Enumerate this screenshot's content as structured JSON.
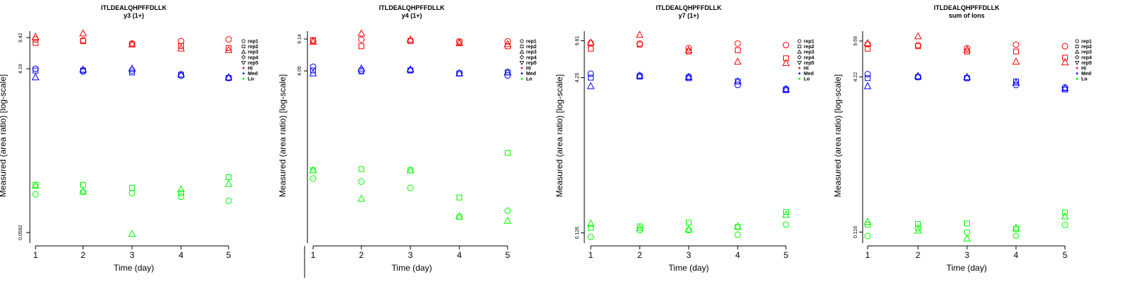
{
  "colors": {
    "Hi": "#ff0000",
    "Med": "#0000ff",
    "Lo": "#00ff00"
  },
  "legend": [
    "rep1",
    "rep2",
    "rep3",
    "rep4",
    "rep5",
    "Hi",
    "Med",
    "Lo"
  ],
  "chart_data": [
    {
      "type": "scatter",
      "title": "ITLDEALQHPFFDLLK",
      "subtitle": "y3 (1+)",
      "xlabel": "Time (day)",
      "ylabel": "Measured (area ratio) [log-scale]",
      "log_y": true,
      "x_ticks": [
        1,
        2,
        3,
        4,
        5
      ],
      "y_ticks": [
        "0.0592",
        "4.19",
        "9.42"
      ],
      "ylim": [
        0.045,
        12
      ],
      "series": [
        {
          "group": "Hi",
          "rep": "rep1",
          "x": [
            1,
            2,
            3,
            4,
            5
          ],
          "y": [
            9.0,
            8.8,
            8.1,
            8.6,
            9.0
          ]
        },
        {
          "group": "Hi",
          "rep": "rep2",
          "x": [
            1,
            2,
            3,
            4,
            5
          ],
          "y": [
            8.2,
            8.6,
            7.9,
            7.6,
            7.2
          ]
        },
        {
          "group": "Hi",
          "rep": "rep3",
          "x": [
            1,
            2,
            3,
            4,
            5
          ],
          "y": [
            9.6,
            10.5,
            7.9,
            7.1,
            6.8
          ]
        },
        {
          "group": "Med",
          "rep": "rep1",
          "x": [
            1,
            2,
            3,
            4,
            5
          ],
          "y": [
            4.2,
            3.9,
            4.0,
            3.5,
            3.3
          ]
        },
        {
          "group": "Med",
          "rep": "rep2",
          "x": [
            1,
            2,
            3,
            4,
            5
          ],
          "y": [
            4.0,
            4.0,
            3.8,
            3.6,
            3.3
          ]
        },
        {
          "group": "Med",
          "rep": "rep3",
          "x": [
            1,
            2,
            3,
            4,
            5
          ],
          "y": [
            3.35,
            4.1,
            4.2,
            3.6,
            3.35
          ]
        },
        {
          "group": "Lo",
          "rep": "rep1",
          "x": [
            1,
            2,
            3,
            4,
            5
          ],
          "y": [
            0.16,
            0.17,
            0.165,
            0.15,
            0.135
          ]
        },
        {
          "group": "Lo",
          "rep": "rep2",
          "x": [
            1,
            2,
            3,
            4,
            5
          ],
          "y": [
            0.205,
            0.205,
            0.19,
            0.165,
            0.25
          ]
        },
        {
          "group": "Lo",
          "rep": "rep3",
          "x": [
            1,
            2,
            3,
            4,
            5
          ],
          "y": [
            0.2,
            0.172,
            0.057,
            0.182,
            0.21
          ]
        }
      ]
    },
    {
      "type": "scatter",
      "title": "ITLDEALQHPFFDLLK",
      "subtitle": "y4 (1+)",
      "xlabel": "Time (day)",
      "ylabel": "Measured (area ratio) [log-scale]",
      "log_y": true,
      "x_ticks": [
        1,
        2,
        3,
        4,
        5
      ],
      "y_ticks": [
        "4.05",
        "9.14"
      ],
      "ylim": [
        0.05,
        12
      ],
      "series": [
        {
          "group": "Hi",
          "rep": "rep1",
          "x": [
            1,
            2,
            3,
            4,
            5
          ],
          "y": [
            8.7,
            9.0,
            8.7,
            8.6,
            8.6
          ]
        },
        {
          "group": "Hi",
          "rep": "rep2",
          "x": [
            1,
            2,
            3,
            4,
            5
          ],
          "y": [
            8.9,
            7.6,
            8.7,
            8.4,
            7.6
          ]
        },
        {
          "group": "Hi",
          "rep": "rep3",
          "x": [
            1,
            2,
            3,
            4,
            5
          ],
          "y": [
            8.5,
            10.5,
            9.0,
            8.2,
            8.0
          ]
        },
        {
          "group": "Med",
          "rep": "rep1",
          "x": [
            1,
            2,
            3,
            4,
            5
          ],
          "y": [
            4.5,
            4.1,
            4.1,
            3.8,
            3.6
          ]
        },
        {
          "group": "Med",
          "rep": "rep2",
          "x": [
            1,
            2,
            3,
            4,
            5
          ],
          "y": [
            4.1,
            4.0,
            4.1,
            3.8,
            3.9
          ]
        },
        {
          "group": "Med",
          "rep": "rep3",
          "x": [
            1,
            2,
            3,
            4,
            5
          ],
          "y": [
            3.8,
            4.3,
            4.2,
            3.8,
            3.9
          ]
        },
        {
          "group": "Lo",
          "rep": "rep1",
          "x": [
            1,
            2,
            3,
            4,
            5
          ],
          "y": [
            0.26,
            0.24,
            0.205,
            0.098,
            0.114
          ]
        },
        {
          "group": "Lo",
          "rep": "rep2",
          "x": [
            1,
            2,
            3,
            4,
            5
          ],
          "y": [
            0.32,
            0.33,
            0.32,
            0.16,
            0.5
          ]
        },
        {
          "group": "Lo",
          "rep": "rep3",
          "x": [
            1,
            2,
            3,
            4,
            5
          ],
          "y": [
            0.32,
            0.155,
            0.32,
            0.098,
            0.088
          ]
        }
      ]
    },
    {
      "type": "scatter",
      "title": "ITLDEALQHPFFDLLK",
      "subtitle": "y7 (1+)",
      "xlabel": "Time (day)",
      "ylabel": "Measured (area ratio) [log-scale]",
      "log_y": true,
      "x_ticks": [
        1,
        2,
        3,
        4,
        5
      ],
      "y_ticks": [
        "0.126",
        "4.25",
        "9.81"
      ],
      "ylim": [
        0.1,
        13
      ],
      "series": [
        {
          "group": "Hi",
          "rep": "rep1",
          "x": [
            1,
            2,
            3,
            4,
            5
          ],
          "y": [
            9.3,
            9.2,
            8.3,
            9.2,
            8.9
          ]
        },
        {
          "group": "Hi",
          "rep": "rep2",
          "x": [
            1,
            2,
            3,
            4,
            5
          ],
          "y": [
            8.2,
            9.0,
            7.7,
            7.9,
            6.6
          ]
        },
        {
          "group": "Hi",
          "rep": "rep3",
          "x": [
            1,
            2,
            3,
            4,
            5
          ],
          "y": [
            9.4,
            11.2,
            7.9,
            6.1,
            5.9
          ]
        },
        {
          "group": "Med",
          "rep": "rep1",
          "x": [
            1,
            2,
            3,
            4,
            5
          ],
          "y": [
            4.65,
            4.45,
            4.35,
            3.6,
            3.3
          ]
        },
        {
          "group": "Med",
          "rep": "rep2",
          "x": [
            1,
            2,
            3,
            4,
            5
          ],
          "y": [
            4.25,
            4.35,
            4.2,
            3.9,
            3.2
          ]
        },
        {
          "group": "Med",
          "rep": "rep3",
          "x": [
            1,
            2,
            3,
            4,
            5
          ],
          "y": [
            3.5,
            4.45,
            4.3,
            3.9,
            3.25
          ]
        },
        {
          "group": "Lo",
          "rep": "rep1",
          "x": [
            1,
            2,
            3,
            4,
            5
          ],
          "y": [
            0.115,
            0.134,
            0.134,
            0.121,
            0.152
          ]
        },
        {
          "group": "Lo",
          "rep": "rep2",
          "x": [
            1,
            2,
            3,
            4,
            5
          ],
          "y": [
            0.141,
            0.146,
            0.159,
            0.144,
            0.202
          ]
        },
        {
          "group": "Lo",
          "rep": "rep3",
          "x": [
            1,
            2,
            3,
            4,
            5
          ],
          "y": [
            0.155,
            0.14,
            0.136,
            0.146,
            0.19
          ]
        }
      ]
    },
    {
      "type": "scatter",
      "title": "ITLDEALQHPFFDLLK",
      "subtitle": "sum of Ions",
      "xlabel": "Time (day)",
      "ylabel": "Measured (area ratio) [log-scale]",
      "log_y": true,
      "x_ticks": [
        1,
        2,
        3,
        4,
        5
      ],
      "y_ticks": [
        "0.116",
        "4.22",
        "9.69"
      ],
      "ylim": [
        0.09,
        13
      ],
      "series": [
        {
          "group": "Hi",
          "rep": "rep1",
          "x": [
            1,
            2,
            3,
            4,
            5
          ],
          "y": [
            9.0,
            8.8,
            8.2,
            8.9,
            8.6
          ]
        },
        {
          "group": "Hi",
          "rep": "rep2",
          "x": [
            1,
            2,
            3,
            4,
            5
          ],
          "y": [
            8.1,
            8.6,
            7.6,
            7.6,
            6.6
          ]
        },
        {
          "group": "Hi",
          "rep": "rep3",
          "x": [
            1,
            2,
            3,
            4,
            5
          ],
          "y": [
            9.2,
            10.8,
            7.9,
            6.0,
            5.9
          ]
        },
        {
          "group": "Med",
          "rep": "rep1",
          "x": [
            1,
            2,
            3,
            4,
            5
          ],
          "y": [
            4.5,
            4.2,
            4.1,
            3.5,
            3.3
          ]
        },
        {
          "group": "Med",
          "rep": "rep2",
          "x": [
            1,
            2,
            3,
            4,
            5
          ],
          "y": [
            4.1,
            4.2,
            4.1,
            3.8,
            3.15
          ]
        },
        {
          "group": "Med",
          "rep": "rep3",
          "x": [
            1,
            2,
            3,
            4,
            5
          ],
          "y": [
            3.4,
            4.3,
            4.2,
            3.7,
            3.25
          ]
        },
        {
          "group": "Lo",
          "rep": "rep1",
          "x": [
            1,
            2,
            3,
            4,
            5
          ],
          "y": [
            0.106,
            0.127,
            0.115,
            0.107,
            0.137
          ]
        },
        {
          "group": "Lo",
          "rep": "rep2",
          "x": [
            1,
            2,
            3,
            4,
            5
          ],
          "y": [
            0.138,
            0.14,
            0.142,
            0.125,
            0.183
          ]
        },
        {
          "group": "Lo",
          "rep": "rep3",
          "x": [
            1,
            2,
            3,
            4,
            5
          ],
          "y": [
            0.147,
            0.12,
            0.1,
            0.128,
            0.167
          ]
        }
      ]
    }
  ]
}
